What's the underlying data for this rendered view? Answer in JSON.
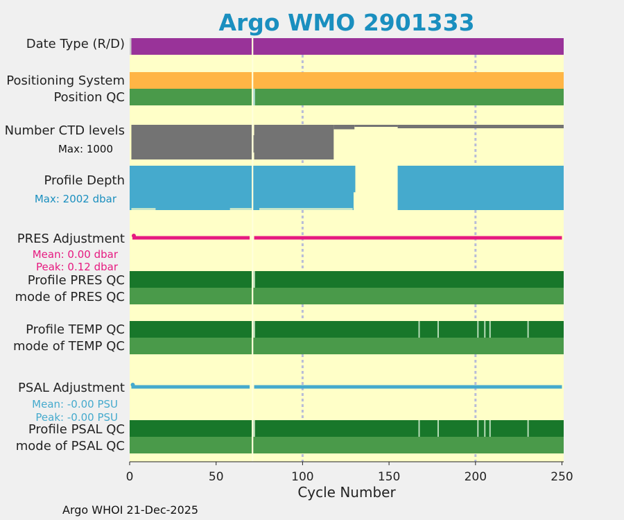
{
  "chart_data": {
    "type": "bar",
    "title": "Argo WMO 2901333",
    "xlabel": "Cycle Number",
    "xlim": [
      0,
      251
    ],
    "xticks": [
      0,
      50,
      100,
      150,
      200,
      250
    ],
    "grid_x": [
      100,
      200
    ],
    "footer": "Argo WHOI 21-Dec-2025",
    "rows": [
      {
        "label": "Date Type (R/D)",
        "color": "#993399",
        "segments": [
          [
            0,
            1,
            "#cccccc"
          ],
          [
            1,
            70.6,
            "#993399"
          ],
          [
            71.4,
            251,
            "#993399"
          ]
        ]
      },
      {
        "label": "Positioning System",
        "color": "#ffb545",
        "segments": [
          [
            0,
            70.6,
            "#ffb545"
          ],
          [
            71.4,
            251,
            "#ffb545"
          ]
        ]
      },
      {
        "label": "Position QC",
        "color": "#4a9a4a",
        "segments": [
          [
            0,
            70.6,
            "#4a9a4a"
          ],
          [
            71.4,
            72.5,
            "#a8d8d0"
          ],
          [
            72.5,
            251,
            "#4a9a4a"
          ]
        ]
      },
      {
        "label": "Number CTD levels",
        "color": "#737373",
        "sublabel": "Max: 1000",
        "sublabel_color": "#111111",
        "max": 1000,
        "steps": [
          [
            1,
            70.6,
            1000
          ],
          [
            72,
            118,
            1000
          ],
          [
            118,
            130,
            130
          ],
          [
            130,
            155,
            60
          ],
          [
            155,
            251,
            100
          ]
        ],
        "notes": [
          [
            71.6,
            72,
            500
          ]
        ]
      },
      {
        "label": "Profile Depth",
        "color": "#45aacd",
        "sublabel": "Max: 2002 dbar",
        "sublabel_color": "#1a8fbf",
        "max": 2002,
        "steps": [
          [
            0,
            70.6,
            2002
          ],
          [
            71.4,
            129.5,
            2002
          ],
          [
            129.5,
            130.5,
            1200
          ],
          [
            155,
            251,
            2002
          ]
        ],
        "ticks_low": [
          [
            1,
            15
          ],
          [
            58,
            70.5
          ],
          [
            75,
            129
          ]
        ]
      },
      {
        "label": "PRES Adjustment",
        "color": "#e61a80",
        "stats": [
          "Mean: 0.00 dbar",
          "Peak: 0.12 dbar"
        ],
        "segments": [
          [
            1.6,
            69.4,
            "#e61a80"
          ],
          [
            72,
            250,
            "#e61a80"
          ]
        ]
      },
      {
        "label": "Profile PRES QC",
        "color": "#18772a",
        "segments": [
          [
            0,
            70.6,
            "#18772a"
          ],
          [
            71.4,
            72.5,
            "#b8dcb8"
          ],
          [
            72.5,
            251,
            "#18772a"
          ]
        ]
      },
      {
        "label": "mode of PRES QC",
        "color": "#4a9a4a",
        "segments": [
          [
            0,
            70.6,
            "#4a9a4a"
          ],
          [
            71.4,
            251,
            "#4a9a4a"
          ]
        ]
      },
      {
        "label": "Profile TEMP QC",
        "color": "#18772a",
        "segments": [
          [
            0,
            70.6,
            "#18772a"
          ],
          [
            71.4,
            72.5,
            "#b8dcb8"
          ],
          [
            72.5,
            251,
            "#18772a"
          ]
        ],
        "breaks": [
          167,
          178,
          201,
          205,
          208,
          230
        ]
      },
      {
        "label": "mode of TEMP QC",
        "color": "#4a9a4a",
        "segments": [
          [
            0,
            70.6,
            "#4a9a4a"
          ],
          [
            71.4,
            251,
            "#4a9a4a"
          ]
        ]
      },
      {
        "label": "PSAL Adjustment",
        "color": "#45aacd",
        "stats": [
          "Mean: -0.00 PSU",
          "Peak: -0.00 PSU"
        ],
        "segments": [
          [
            1,
            69.4,
            "#45aacd"
          ],
          [
            72,
            250,
            "#45aacd"
          ]
        ]
      },
      {
        "label": "Profile PSAL QC",
        "color": "#18772a",
        "segments": [
          [
            0,
            70.6,
            "#18772a"
          ],
          [
            71.4,
            72.5,
            "#b8dcb8"
          ],
          [
            72.5,
            251,
            "#18772a"
          ]
        ],
        "breaks": [
          167,
          178,
          201,
          205,
          208,
          230
        ]
      },
      {
        "label": "mode of PSAL QC",
        "color": "#4a9a4a",
        "segments": [
          [
            0,
            70.6,
            "#4a9a4a"
          ],
          [
            71.4,
            251,
            "#4a9a4a"
          ]
        ]
      }
    ]
  }
}
